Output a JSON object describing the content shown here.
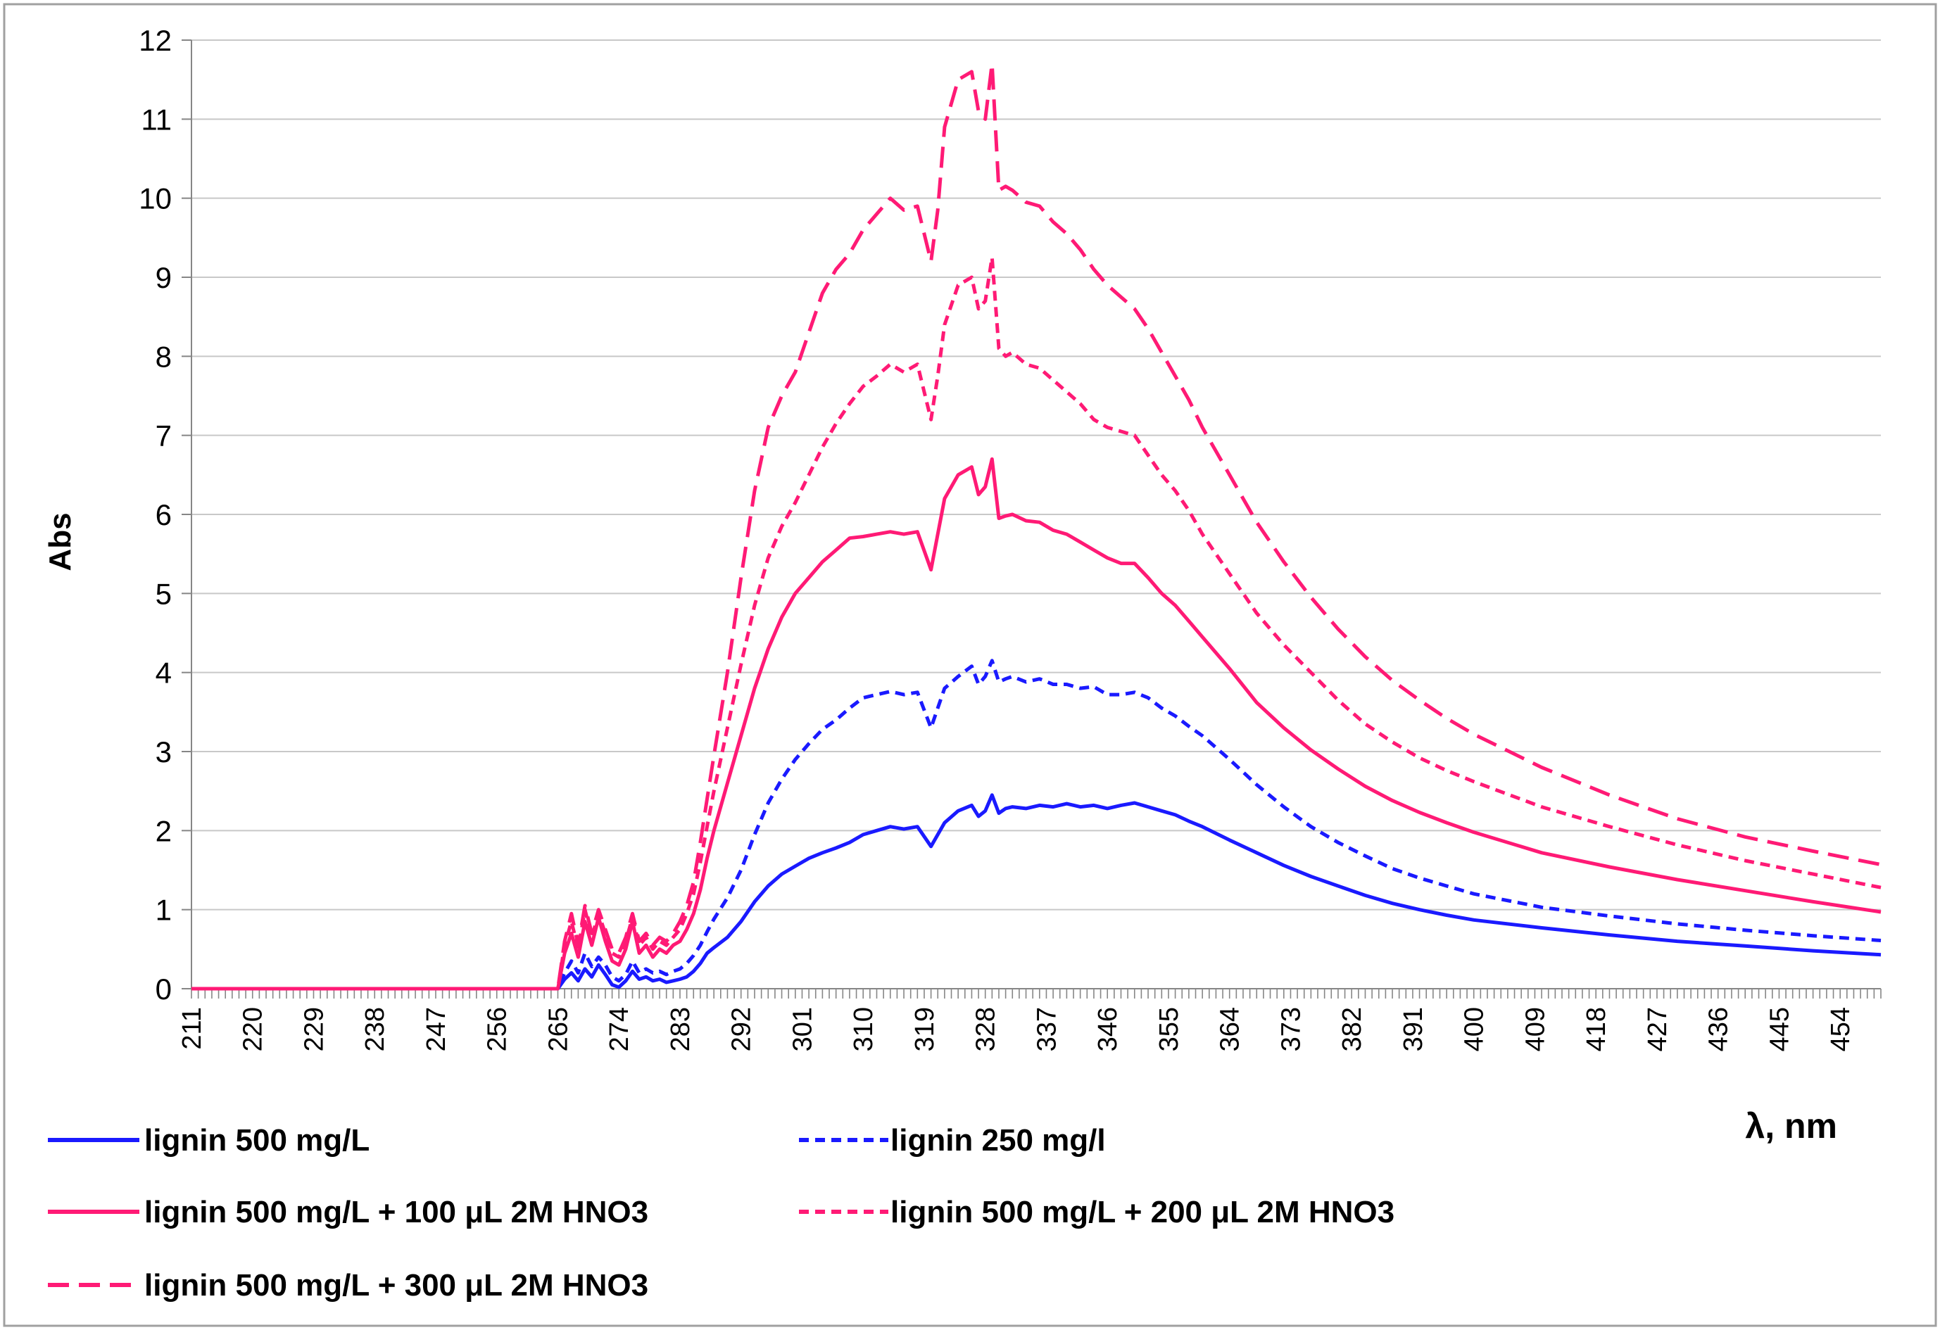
{
  "chart_data": {
    "type": "line",
    "title": "",
    "xlabel": "λ, nm",
    "ylabel": "Abs",
    "xlim": [
      211,
      460
    ],
    "ylim": [
      0,
      12
    ],
    "yticks": [
      "0",
      "1",
      "2",
      "3",
      "4",
      "5",
      "6",
      "7",
      "8",
      "9",
      "10",
      "11",
      "12"
    ],
    "xticks": [
      "211",
      "220",
      "229",
      "238",
      "247",
      "256",
      "265",
      "274",
      "283",
      "292",
      "301",
      "310",
      "319",
      "328",
      "337",
      "346",
      "355",
      "364",
      "373",
      "382",
      "391",
      "400",
      "409",
      "418",
      "427",
      "436",
      "445",
      "454"
    ],
    "grid": "horizontal",
    "legend_position": "bottom",
    "colors": {
      "blue": "#1a1aff",
      "pink": "#ff1a75",
      "grid": "#c8c8c8",
      "border": "#a0a0a0"
    },
    "series": [
      {
        "name": "lignin 500 mg/L",
        "color": "#1a1aff",
        "dash": "solid",
        "x": [
          211,
          265,
          266,
          267,
          268,
          269,
          270,
          271,
          272,
          273,
          274,
          275,
          276,
          277,
          278,
          279,
          280,
          281,
          282,
          283,
          284,
          285,
          286,
          287,
          288,
          290,
          292,
          294,
          296,
          298,
          300,
          302,
          304,
          306,
          308,
          310,
          312,
          314,
          316,
          318,
          320,
          321,
          322,
          324,
          326,
          327,
          328,
          329,
          330,
          331,
          332,
          334,
          336,
          338,
          340,
          342,
          344,
          346,
          348,
          350,
          352,
          354,
          356,
          358,
          360,
          364,
          368,
          372,
          376,
          380,
          384,
          388,
          392,
          396,
          400,
          410,
          420,
          430,
          440,
          450,
          460
        ],
        "y": [
          0,
          0,
          0.12,
          0.2,
          0.1,
          0.25,
          0.15,
          0.3,
          0.18,
          0.05,
          0.02,
          0.1,
          0.22,
          0.12,
          0.15,
          0.1,
          0.12,
          0.08,
          0.1,
          0.12,
          0.15,
          0.22,
          0.32,
          0.45,
          0.52,
          0.65,
          0.85,
          1.1,
          1.3,
          1.45,
          1.55,
          1.65,
          1.72,
          1.78,
          1.85,
          1.95,
          2.0,
          2.05,
          2.02,
          2.05,
          1.8,
          1.95,
          2.1,
          2.25,
          2.32,
          2.18,
          2.25,
          2.45,
          2.22,
          2.28,
          2.3,
          2.28,
          2.32,
          2.3,
          2.34,
          2.3,
          2.32,
          2.28,
          2.32,
          2.35,
          2.3,
          2.25,
          2.2,
          2.12,
          2.05,
          1.88,
          1.72,
          1.56,
          1.42,
          1.3,
          1.18,
          1.08,
          1.0,
          0.93,
          0.87,
          0.77,
          0.68,
          0.6,
          0.54,
          0.48,
          0.43
        ]
      },
      {
        "name": "lignin 250 mg/l",
        "color": "#1a1aff",
        "dash": "short",
        "x": [
          211,
          265,
          266,
          267,
          268,
          269,
          270,
          271,
          272,
          273,
          274,
          275,
          276,
          277,
          278,
          279,
          280,
          281,
          282,
          283,
          284,
          285,
          286,
          287,
          288,
          290,
          292,
          294,
          296,
          298,
          300,
          302,
          304,
          306,
          308,
          310,
          312,
          314,
          316,
          318,
          320,
          321,
          322,
          324,
          326,
          327,
          328,
          329,
          330,
          331,
          332,
          334,
          336,
          338,
          340,
          342,
          344,
          346,
          348,
          350,
          352,
          354,
          356,
          358,
          360,
          364,
          368,
          372,
          376,
          380,
          384,
          388,
          392,
          396,
          400,
          410,
          420,
          430,
          440,
          450,
          460
        ],
        "y": [
          0,
          0,
          0.2,
          0.35,
          0.2,
          0.45,
          0.28,
          0.4,
          0.3,
          0.15,
          0.1,
          0.18,
          0.35,
          0.2,
          0.25,
          0.2,
          0.22,
          0.18,
          0.22,
          0.25,
          0.32,
          0.42,
          0.55,
          0.72,
          0.88,
          1.15,
          1.5,
          1.95,
          2.35,
          2.65,
          2.9,
          3.1,
          3.28,
          3.4,
          3.55,
          3.68,
          3.72,
          3.76,
          3.72,
          3.75,
          3.3,
          3.55,
          3.8,
          3.95,
          4.08,
          3.85,
          3.95,
          4.15,
          3.88,
          3.92,
          3.95,
          3.88,
          3.92,
          3.85,
          3.85,
          3.8,
          3.82,
          3.72,
          3.72,
          3.75,
          3.68,
          3.55,
          3.45,
          3.32,
          3.2,
          2.9,
          2.58,
          2.3,
          2.05,
          1.85,
          1.68,
          1.52,
          1.4,
          1.3,
          1.2,
          1.03,
          0.92,
          0.82,
          0.74,
          0.67,
          0.61
        ]
      },
      {
        "name": "lignin 500 mg/L + 100 μL 2M HNO3",
        "color": "#ff1a75",
        "dash": "solid",
        "x": [
          211,
          265,
          266,
          267,
          268,
          269,
          270,
          271,
          272,
          273,
          274,
          275,
          276,
          277,
          278,
          279,
          280,
          281,
          282,
          283,
          284,
          285,
          286,
          287,
          288,
          290,
          292,
          294,
          296,
          298,
          300,
          302,
          304,
          306,
          308,
          310,
          312,
          314,
          316,
          318,
          320,
          321,
          322,
          324,
          326,
          327,
          328,
          329,
          330,
          331,
          332,
          334,
          336,
          338,
          340,
          342,
          344,
          346,
          348,
          350,
          352,
          354,
          356,
          358,
          360,
          364,
          368,
          372,
          376,
          380,
          384,
          388,
          392,
          396,
          400,
          410,
          420,
          430,
          440,
          450,
          460
        ],
        "y": [
          0,
          0,
          0.45,
          0.7,
          0.4,
          0.85,
          0.55,
          0.9,
          0.6,
          0.35,
          0.3,
          0.5,
          0.85,
          0.45,
          0.55,
          0.4,
          0.5,
          0.45,
          0.55,
          0.6,
          0.75,
          0.95,
          1.25,
          1.65,
          2.0,
          2.6,
          3.2,
          3.8,
          4.3,
          4.7,
          5.0,
          5.2,
          5.4,
          5.55,
          5.7,
          5.72,
          5.75,
          5.78,
          5.75,
          5.78,
          5.3,
          5.75,
          6.2,
          6.5,
          6.6,
          6.25,
          6.35,
          6.7,
          5.95,
          5.98,
          6.0,
          5.92,
          5.9,
          5.8,
          5.75,
          5.65,
          5.55,
          5.45,
          5.38,
          5.38,
          5.2,
          5.0,
          4.85,
          4.65,
          4.45,
          4.05,
          3.62,
          3.3,
          3.02,
          2.78,
          2.56,
          2.38,
          2.23,
          2.1,
          1.98,
          1.72,
          1.54,
          1.38,
          1.24,
          1.1,
          0.97
        ]
      },
      {
        "name": "lignin 500 mg/L + 200 μL 2M HNO3",
        "color": "#ff1a75",
        "dash": "short",
        "x": [
          211,
          265,
          266,
          267,
          268,
          269,
          270,
          271,
          272,
          273,
          274,
          275,
          276,
          277,
          278,
          279,
          280,
          281,
          282,
          283,
          284,
          285,
          286,
          287,
          288,
          290,
          292,
          294,
          296,
          298,
          300,
          302,
          304,
          306,
          308,
          310,
          312,
          314,
          316,
          318,
          320,
          321,
          322,
          324,
          326,
          327,
          328,
          329,
          330,
          331,
          332,
          334,
          336,
          338,
          340,
          342,
          344,
          346,
          348,
          350,
          352,
          354,
          356,
          358,
          360,
          364,
          368,
          372,
          376,
          380,
          384,
          388,
          392,
          396,
          400,
          410,
          420,
          430,
          440,
          450,
          460
        ],
        "y": [
          0,
          0,
          0.55,
          0.85,
          0.5,
          1.0,
          0.65,
          0.95,
          0.7,
          0.45,
          0.4,
          0.6,
          0.9,
          0.55,
          0.65,
          0.5,
          0.6,
          0.55,
          0.65,
          0.75,
          0.95,
          1.2,
          1.6,
          2.05,
          2.5,
          3.3,
          4.1,
          4.85,
          5.45,
          5.85,
          6.15,
          6.5,
          6.85,
          7.15,
          7.4,
          7.62,
          7.75,
          7.9,
          7.8,
          7.9,
          7.2,
          7.75,
          8.4,
          8.9,
          9.0,
          8.6,
          8.7,
          9.25,
          8.1,
          8.0,
          8.05,
          7.9,
          7.85,
          7.7,
          7.55,
          7.4,
          7.2,
          7.1,
          7.05,
          7.0,
          6.75,
          6.5,
          6.3,
          6.05,
          5.75,
          5.25,
          4.75,
          4.35,
          4.0,
          3.65,
          3.35,
          3.12,
          2.92,
          2.76,
          2.62,
          2.3,
          2.05,
          1.82,
          1.62,
          1.45,
          1.28
        ]
      },
      {
        "name": "lignin 500 mg/L + 300 μL 2M HNO3",
        "color": "#ff1a75",
        "dash": "long",
        "x": [
          211,
          265,
          266,
          267,
          268,
          269,
          270,
          271,
          272,
          273,
          274,
          275,
          276,
          277,
          278,
          279,
          280,
          281,
          282,
          283,
          284,
          285,
          286,
          287,
          288,
          290,
          292,
          294,
          296,
          298,
          300,
          302,
          304,
          306,
          308,
          310,
          312,
          314,
          316,
          318,
          320,
          321,
          322,
          324,
          326,
          327,
          328,
          329,
          330,
          331,
          332,
          334,
          336,
          338,
          340,
          342,
          344,
          346,
          348,
          350,
          352,
          354,
          356,
          358,
          360,
          364,
          368,
          372,
          376,
          380,
          384,
          388,
          392,
          396,
          400,
          410,
          420,
          430,
          440,
          450,
          460
        ],
        "y": [
          0,
          0,
          0.6,
          0.95,
          0.55,
          1.05,
          0.7,
          1.0,
          0.75,
          0.5,
          0.45,
          0.65,
          0.95,
          0.6,
          0.7,
          0.55,
          0.65,
          0.6,
          0.7,
          0.85,
          1.05,
          1.35,
          1.85,
          2.4,
          2.95,
          4.0,
          5.2,
          6.3,
          7.1,
          7.5,
          7.8,
          8.3,
          8.8,
          9.1,
          9.3,
          9.6,
          9.8,
          10.0,
          9.85,
          9.9,
          9.2,
          9.85,
          10.9,
          11.5,
          11.6,
          11.1,
          11.0,
          11.7,
          10.1,
          10.15,
          10.1,
          9.95,
          9.9,
          9.7,
          9.55,
          9.35,
          9.1,
          8.9,
          8.75,
          8.6,
          8.35,
          8.05,
          7.75,
          7.45,
          7.1,
          6.5,
          5.9,
          5.4,
          4.95,
          4.55,
          4.2,
          3.9,
          3.65,
          3.42,
          3.22,
          2.8,
          2.45,
          2.15,
          1.92,
          1.74,
          1.57
        ]
      }
    ]
  }
}
